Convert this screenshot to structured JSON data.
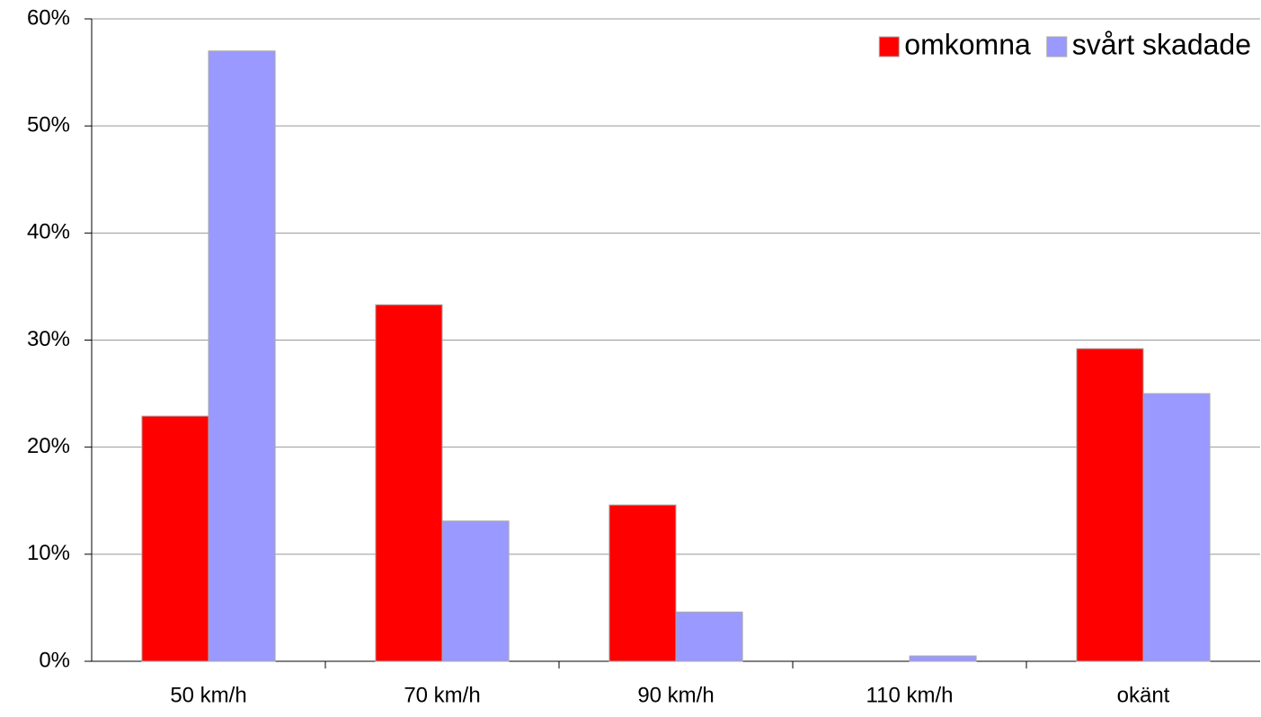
{
  "chart_data": {
    "type": "bar",
    "categories": [
      "50 km/h",
      "70 km/h",
      "90 km/h",
      "110 km/h",
      "okänt"
    ],
    "series": [
      {
        "name": "omkomna",
        "color": "#ff0000",
        "values": [
          22.9,
          33.3,
          14.6,
          0,
          29.2
        ]
      },
      {
        "name": "svårt skadade",
        "color": "#9999ff",
        "values": [
          57.0,
          13.1,
          4.6,
          0.5,
          25.0
        ]
      }
    ],
    "ylim": [
      0,
      60
    ],
    "yticks": [
      {
        "value": 0,
        "label": "0%"
      },
      {
        "value": 10,
        "label": "10%"
      },
      {
        "value": 20,
        "label": "20%"
      },
      {
        "value": 30,
        "label": "30%"
      },
      {
        "value": 40,
        "label": "40%"
      },
      {
        "value": 50,
        "label": "50%"
      },
      {
        "value": 60,
        "label": "60%"
      }
    ],
    "grid": true,
    "legend": "top-right"
  }
}
